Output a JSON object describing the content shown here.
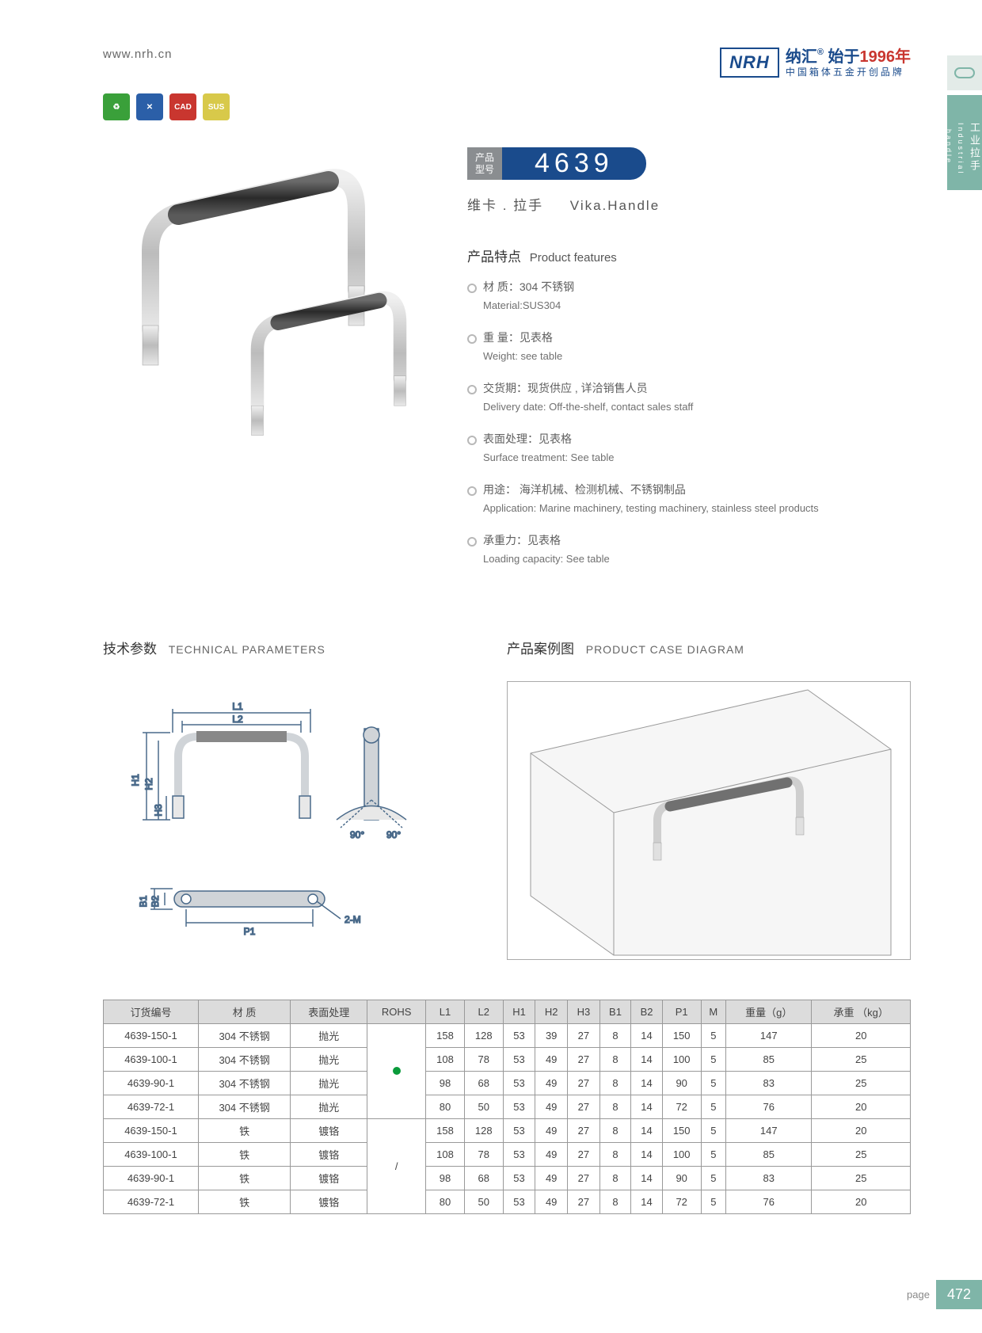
{
  "header": {
    "url": "www.nrh.cn",
    "logo": "NRH",
    "brand_cn": "纳汇",
    "brand_year_prefix": "始于",
    "brand_year": "1996年",
    "brand_sub": "中国箱体五金开创品牌"
  },
  "side_tab": {
    "cn": "工业拉手",
    "en": "Industrial handle"
  },
  "icons": [
    {
      "bg": "#3aa03a",
      "label": "♻"
    },
    {
      "bg": "#2b5fa8",
      "label": "✕"
    },
    {
      "bg": "#c9362f",
      "label": "CAD"
    },
    {
      "bg": "#d8c94a",
      "label": "SUS"
    }
  ],
  "model": {
    "label": "产品\n型号",
    "number": "4639"
  },
  "product_name": {
    "cn": "维卡 . 拉手",
    "en": "Vika.Handle"
  },
  "features_title": {
    "cn": "产品特点",
    "en": "Product features"
  },
  "features": [
    {
      "cn": "材 质：304 不锈钢",
      "en": "Material:SUS304"
    },
    {
      "cn": "重 量：见表格",
      "en": "Weight: see table"
    },
    {
      "cn": "交货期：现货供应 , 详洽销售人员",
      "en": "Delivery date: Off-the-shelf, contact sales staff"
    },
    {
      "cn": "表面处理：见表格",
      "en": "Surface treatment: See table"
    },
    {
      "cn": "用途： 海洋机械、检测机械、不锈钢制品",
      "en": "Application: Marine machinery, testing machinery, stainless steel products"
    },
    {
      "cn": "承重力：见表格",
      "en": "Loading capacity: See table"
    }
  ],
  "sections": {
    "tech": {
      "cn": "技术参数",
      "en": "TECHNICAL PARAMETERS"
    },
    "case": {
      "cn": "产品案例图",
      "en": "PRODUCT CASE DIAGRAM"
    }
  },
  "tech_labels": {
    "L1": "L1",
    "L2": "L2",
    "H1": "H1",
    "H2": "H2",
    "H3": "H3",
    "B1": "B1",
    "B2": "B2",
    "P1": "P1",
    "M": "2-M",
    "a90": "90°"
  },
  "table": {
    "columns": [
      "订货编号",
      "材   质",
      "表面处理",
      "ROHS",
      "L1",
      "L2",
      "H1",
      "H2",
      "H3",
      "B1",
      "B2",
      "P1",
      "M",
      "重量（g）",
      "承重 （kg）"
    ],
    "rohs_groups": [
      {
        "symbol": "dot",
        "rowspan": 4
      },
      {
        "symbol": "/",
        "rowspan": 4
      }
    ],
    "rows": [
      [
        "4639-150-1",
        "304 不锈钢",
        "抛光",
        "158",
        "128",
        "53",
        "39",
        "27",
        "8",
        "14",
        "150",
        "5",
        "147",
        "20"
      ],
      [
        "4639-100-1",
        "304 不锈钢",
        "抛光",
        "108",
        "78",
        "53",
        "49",
        "27",
        "8",
        "14",
        "100",
        "5",
        "85",
        "25"
      ],
      [
        "4639-90-1",
        "304 不锈钢",
        "抛光",
        "98",
        "68",
        "53",
        "49",
        "27",
        "8",
        "14",
        "90",
        "5",
        "83",
        "25"
      ],
      [
        "4639-72-1",
        "304 不锈钢",
        "抛光",
        "80",
        "50",
        "53",
        "49",
        "27",
        "8",
        "14",
        "72",
        "5",
        "76",
        "20"
      ],
      [
        "4639-150-1",
        "铁",
        "镀铬",
        "158",
        "128",
        "53",
        "49",
        "27",
        "8",
        "14",
        "150",
        "5",
        "147",
        "20"
      ],
      [
        "4639-100-1",
        "铁",
        "镀铬",
        "108",
        "78",
        "53",
        "49",
        "27",
        "8",
        "14",
        "100",
        "5",
        "85",
        "25"
      ],
      [
        "4639-90-1",
        "铁",
        "镀铬",
        "98",
        "68",
        "53",
        "49",
        "27",
        "8",
        "14",
        "90",
        "5",
        "83",
        "25"
      ],
      [
        "4639-72-1",
        "铁",
        "镀铬",
        "80",
        "50",
        "53",
        "49",
        "27",
        "8",
        "14",
        "72",
        "5",
        "76",
        "20"
      ]
    ]
  },
  "page": {
    "label": "page",
    "number": "472"
  },
  "colors": {
    "navy": "#1a4b8c",
    "red": "#c9362f",
    "teal": "#7fb5a8",
    "grey": "#8a8d90",
    "table_header": "#dcdcdc",
    "border": "#999",
    "diagram_line": "#4a6a8a"
  }
}
